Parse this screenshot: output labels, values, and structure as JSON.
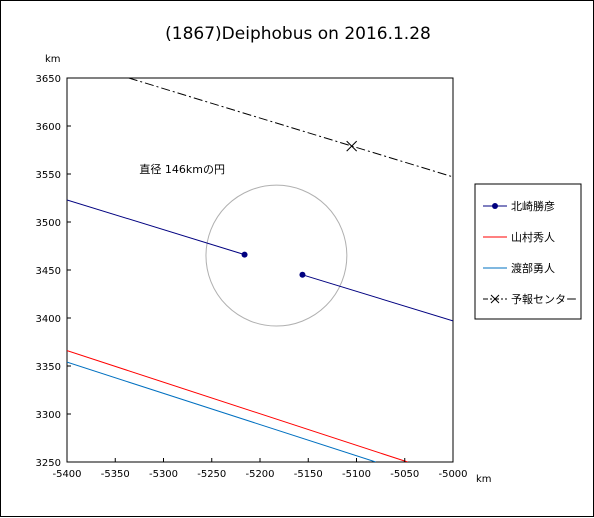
{
  "chart_data": {
    "type": "line",
    "title": "(1867)Deiphobus on 2016.1.28",
    "xlabel": "km",
    "ylabel": "km",
    "xlim": [
      -5400,
      -5000
    ],
    "ylim": [
      3250,
      3650
    ],
    "x_ticks": [
      "-5400",
      "-5350",
      "-5300",
      "-5250",
      "-5200",
      "-5150",
      "-5100",
      "-5050",
      "-5000"
    ],
    "y_ticks": [
      "3650",
      "3600",
      "3550",
      "3500",
      "3450",
      "3400",
      "3350",
      "3300",
      "3250"
    ],
    "grid": false,
    "legend_position": "right",
    "series": [
      {
        "name": "北崎勝彦",
        "color": "#000080",
        "style": "solid-with-end-markers",
        "segments": [
          {
            "x": [
              -5400,
              -5216
            ],
            "y": [
              3523,
              3466
            ],
            "marker_end": true
          },
          {
            "x": [
              -5156,
              -5000
            ],
            "y": [
              3445,
              3397
            ],
            "marker_start": true
          }
        ]
      },
      {
        "name": "山村秀人",
        "color": "#ff0000",
        "style": "solid",
        "segments": [
          {
            "x": [
              -5400,
              -5047
            ],
            "y": [
              3366,
              3250
            ]
          }
        ]
      },
      {
        "name": "渡部勇人",
        "color": "#0070c0",
        "style": "solid",
        "segments": [
          {
            "x": [
              -5400,
              -5080
            ],
            "y": [
              3354,
              3250
            ]
          }
        ]
      },
      {
        "name": "予報センター",
        "color": "#000000",
        "style": "dash-dot",
        "segments": [
          {
            "x": [
              -5336,
              -5000
            ],
            "y": [
              3650,
              3547
            ]
          }
        ],
        "center_marker": {
          "x": -5105,
          "y": 3579
        }
      }
    ],
    "circle": {
      "cx": -5183,
      "cy": 3465,
      "r": 73,
      "color": "#b0b0b0"
    },
    "annotation": {
      "text": "直径 146kmの円",
      "x": -5325,
      "y": 3551
    }
  }
}
